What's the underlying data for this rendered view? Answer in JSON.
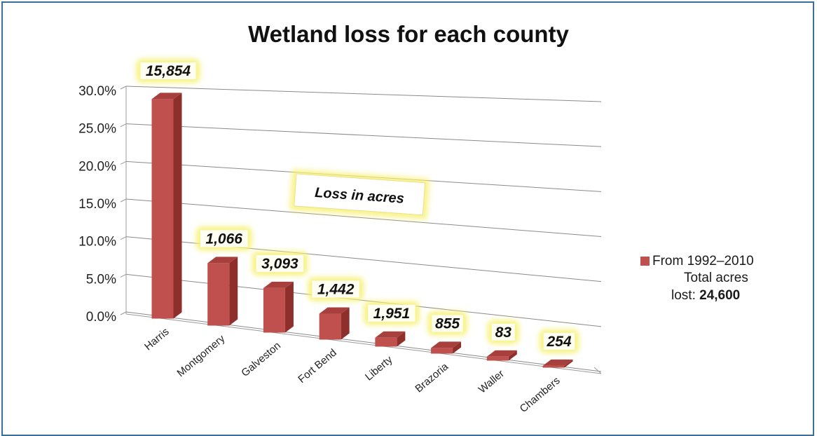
{
  "chart_data": {
    "type": "bar",
    "title": "Wetland loss for each county",
    "categories": [
      "Harris",
      "Montgomery",
      "Galveston",
      "Fort Bend",
      "Liberty",
      "Brazoria",
      "Waller",
      "Chambers"
    ],
    "series": [
      {
        "name": "From 1992–2010",
        "values": [
          28.5,
          7.8,
          5.4,
          3.0,
          0.9,
          0.5,
          0.3,
          0.05
        ],
        "data_labels": [
          "15,854",
          "1,066",
          "3,093",
          "1,442",
          "1,951",
          "855",
          "83",
          "254"
        ]
      }
    ],
    "y_ticks": [
      "0.0%",
      "5.0%",
      "10.0%",
      "15.0%",
      "20.0%",
      "25.0%",
      "30.0%"
    ],
    "ylim": [
      0,
      30
    ],
    "grid": true,
    "three_d": true,
    "bar_color": "#c0504d",
    "label_highlight_color": "#f7f27a",
    "annotation": "Loss in acres",
    "legend": {
      "position": "right",
      "entry": "From 1992–2010",
      "note_line1": "Total acres",
      "note_prefix": "lost: ",
      "note_value": "24,600"
    }
  }
}
